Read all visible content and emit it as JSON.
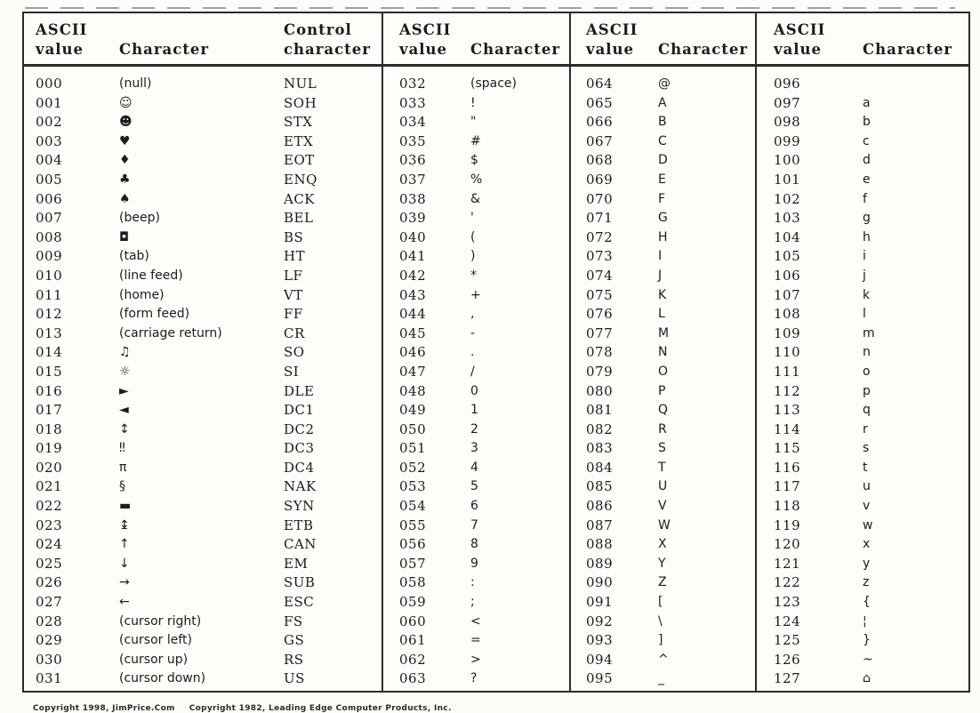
{
  "footer": {
    "copyright1": "Copyright 1998, JimPrice.Com",
    "copyright2": "Copyright 1982, Leading Edge Computer Products, Inc."
  },
  "table": {
    "groups": [
      {
        "header": {
          "ascii": "ASCII",
          "value": "value",
          "character": "Character",
          "control_line1": "Control",
          "control_line2": "character"
        },
        "rows": [
          [
            "000",
            "(null)",
            "NUL"
          ],
          [
            "001",
            "☺",
            "SOH"
          ],
          [
            "002",
            "☻",
            "STX"
          ],
          [
            "003",
            "♥",
            "ETX"
          ],
          [
            "004",
            "♦",
            "EOT"
          ],
          [
            "005",
            "♣",
            "ENQ"
          ],
          [
            "006",
            "♠",
            "ACK"
          ],
          [
            "007",
            "(beep)",
            "BEL"
          ],
          [
            "008",
            "◘",
            "BS"
          ],
          [
            "009",
            "(tab)",
            "HT"
          ],
          [
            "010",
            "(line feed)",
            "LF"
          ],
          [
            "011",
            "(home)",
            "VT"
          ],
          [
            "012",
            "(form feed)",
            "FF"
          ],
          [
            "013",
            "(carriage return)",
            "CR"
          ],
          [
            "014",
            "♫",
            "SO"
          ],
          [
            "015",
            "☼",
            "SI"
          ],
          [
            "016",
            "►",
            "DLE"
          ],
          [
            "017",
            "◄",
            "DC1"
          ],
          [
            "018",
            "↕",
            "DC2"
          ],
          [
            "019",
            "‼",
            "DC3"
          ],
          [
            "020",
            "π",
            "DC4"
          ],
          [
            "021",
            "§",
            "NAK"
          ],
          [
            "022",
            "▬",
            "SYN"
          ],
          [
            "023",
            "↨",
            "ETB"
          ],
          [
            "024",
            "↑",
            "CAN"
          ],
          [
            "025",
            "↓",
            "EM"
          ],
          [
            "026",
            "→",
            "SUB"
          ],
          [
            "027",
            "←",
            "ESC"
          ],
          [
            "028",
            "(cursor right)",
            "FS"
          ],
          [
            "029",
            "(cursor left)",
            "GS"
          ],
          [
            "030",
            "(cursor up)",
            "RS"
          ],
          [
            "031",
            "(cursor down)",
            "US"
          ]
        ]
      },
      {
        "header": {
          "ascii": "ASCII",
          "value": "value",
          "character": "Character"
        },
        "rows": [
          [
            "032",
            "(space)"
          ],
          [
            "033",
            "!"
          ],
          [
            "034",
            "\""
          ],
          [
            "035",
            "#"
          ],
          [
            "036",
            "$"
          ],
          [
            "037",
            "%"
          ],
          [
            "038",
            "&"
          ],
          [
            "039",
            "'"
          ],
          [
            "040",
            "("
          ],
          [
            "041",
            ")"
          ],
          [
            "042",
            "*"
          ],
          [
            "043",
            "+"
          ],
          [
            "044",
            ","
          ],
          [
            "045",
            "-"
          ],
          [
            "046",
            "."
          ],
          [
            "047",
            "/"
          ],
          [
            "048",
            "0"
          ],
          [
            "049",
            "1"
          ],
          [
            "050",
            "2"
          ],
          [
            "051",
            "3"
          ],
          [
            "052",
            "4"
          ],
          [
            "053",
            "5"
          ],
          [
            "054",
            "6"
          ],
          [
            "055",
            "7"
          ],
          [
            "056",
            "8"
          ],
          [
            "057",
            "9"
          ],
          [
            "058",
            ":"
          ],
          [
            "059",
            ";"
          ],
          [
            "060",
            "<"
          ],
          [
            "061",
            "="
          ],
          [
            "062",
            ">"
          ],
          [
            "063",
            "?"
          ]
        ]
      },
      {
        "header": {
          "ascii": "ASCII",
          "value": "value",
          "character": "Character"
        },
        "rows": [
          [
            "064",
            "@"
          ],
          [
            "065",
            "A"
          ],
          [
            "066",
            "B"
          ],
          [
            "067",
            "C"
          ],
          [
            "068",
            "D"
          ],
          [
            "069",
            "E"
          ],
          [
            "070",
            "F"
          ],
          [
            "071",
            "G"
          ],
          [
            "072",
            "H"
          ],
          [
            "073",
            "I"
          ],
          [
            "074",
            "J"
          ],
          [
            "075",
            "K"
          ],
          [
            "076",
            "L"
          ],
          [
            "077",
            "M"
          ],
          [
            "078",
            "N"
          ],
          [
            "079",
            "O"
          ],
          [
            "080",
            "P"
          ],
          [
            "081",
            "Q"
          ],
          [
            "082",
            "R"
          ],
          [
            "083",
            "S"
          ],
          [
            "084",
            "T"
          ],
          [
            "085",
            "U"
          ],
          [
            "086",
            "V"
          ],
          [
            "087",
            "W"
          ],
          [
            "088",
            "X"
          ],
          [
            "089",
            "Y"
          ],
          [
            "090",
            "Z"
          ],
          [
            "091",
            "["
          ],
          [
            "092",
            "\\"
          ],
          [
            "093",
            "]"
          ],
          [
            "094",
            "^"
          ],
          [
            "095",
            "_"
          ]
        ]
      },
      {
        "header": {
          "ascii": "ASCII",
          "value": "value",
          "character": "Character"
        },
        "rows": [
          [
            "096",
            ""
          ],
          [
            "097",
            "a"
          ],
          [
            "098",
            "b"
          ],
          [
            "099",
            "c"
          ],
          [
            "100",
            "d"
          ],
          [
            "101",
            "e"
          ],
          [
            "102",
            "f"
          ],
          [
            "103",
            "g"
          ],
          [
            "104",
            "h"
          ],
          [
            "105",
            "i"
          ],
          [
            "106",
            "j"
          ],
          [
            "107",
            "k"
          ],
          [
            "108",
            "l"
          ],
          [
            "109",
            "m"
          ],
          [
            "110",
            "n"
          ],
          [
            "111",
            "o"
          ],
          [
            "112",
            "p"
          ],
          [
            "113",
            "q"
          ],
          [
            "114",
            "r"
          ],
          [
            "115",
            "s"
          ],
          [
            "116",
            "t"
          ],
          [
            "117",
            "u"
          ],
          [
            "118",
            "v"
          ],
          [
            "119",
            "w"
          ],
          [
            "120",
            "x"
          ],
          [
            "121",
            "y"
          ],
          [
            "122",
            "z"
          ],
          [
            "123",
            "{"
          ],
          [
            "124",
            "¦"
          ],
          [
            "125",
            "}"
          ],
          [
            "126",
            "~"
          ],
          [
            "127",
            "⌂"
          ]
        ]
      }
    ]
  },
  "colors": {
    "ink": "#1c1c1c",
    "border": "#2b2b2b",
    "background": "#fcfcf9"
  }
}
